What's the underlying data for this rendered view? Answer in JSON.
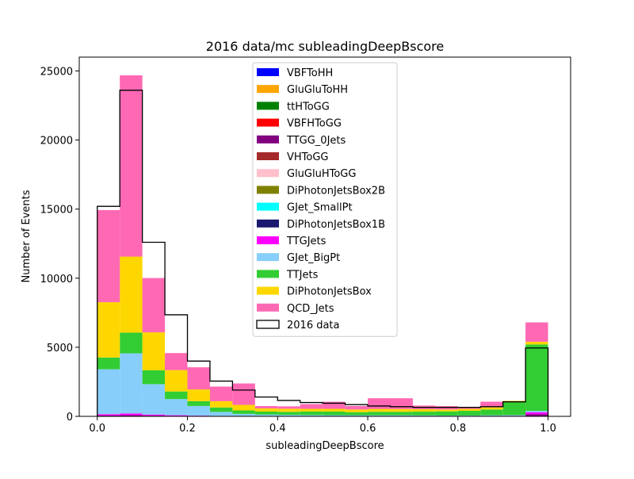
{
  "chart_data": {
    "type": "bar",
    "stacked": true,
    "title": "2016 data/mc subleadingDeepBscore",
    "xlabel": "subleadingDeepBscore",
    "ylabel": "Number of Events",
    "xlim": [
      -0.04,
      1.05
    ],
    "ylim": [
      0,
      26000
    ],
    "xticks": [
      0.0,
      0.2,
      0.4,
      0.6,
      0.8,
      1.0
    ],
    "xtick_labels": [
      "0.0",
      "0.2",
      "0.4",
      "0.6",
      "0.8",
      "1.0"
    ],
    "yticks": [
      0,
      5000,
      10000,
      15000,
      20000,
      25000
    ],
    "ytick_labels": [
      "0",
      "5000",
      "10000",
      "15000",
      "20000",
      "25000"
    ],
    "legend_position": "top-center",
    "bin_edges": [
      0.0,
      0.05,
      0.1,
      0.15,
      0.2,
      0.25,
      0.3,
      0.35,
      0.4,
      0.45,
      0.5,
      0.55,
      0.6,
      0.65,
      0.7,
      0.75,
      0.8,
      0.85,
      0.9,
      0.95,
      1.0
    ],
    "series": [
      {
        "name": "VBFToHH",
        "color": "#0000ff",
        "values": [
          0,
          0,
          0,
          0,
          0,
          0,
          0,
          0,
          0,
          0,
          0,
          0,
          0,
          0,
          0,
          0,
          0,
          0,
          0,
          0
        ]
      },
      {
        "name": "GluGluToHH",
        "color": "#ffa500",
        "values": [
          0,
          0,
          0,
          0,
          0,
          0,
          0,
          0,
          0,
          0,
          0,
          0,
          0,
          0,
          0,
          0,
          0,
          0,
          0,
          0
        ]
      },
      {
        "name": "ttHToGG",
        "color": "#008000",
        "values": [
          0,
          0,
          0,
          0,
          0,
          0,
          0,
          0,
          0,
          0,
          0,
          0,
          0,
          0,
          0,
          0,
          0,
          0,
          0,
          0
        ]
      },
      {
        "name": "VBFHToGG",
        "color": "#ff0000",
        "values": [
          0,
          0,
          0,
          0,
          0,
          0,
          0,
          0,
          0,
          0,
          0,
          0,
          0,
          0,
          0,
          0,
          0,
          0,
          0,
          0
        ]
      },
      {
        "name": "TTGG_0Jets",
        "color": "#800080",
        "values": [
          60,
          80,
          50,
          30,
          20,
          15,
          10,
          10,
          10,
          10,
          10,
          10,
          10,
          10,
          10,
          10,
          10,
          15,
          20,
          150
        ]
      },
      {
        "name": "VHToGG",
        "color": "#a52a2a",
        "values": [
          0,
          0,
          0,
          0,
          0,
          0,
          0,
          0,
          0,
          0,
          0,
          0,
          0,
          0,
          0,
          0,
          0,
          0,
          0,
          0
        ]
      },
      {
        "name": "GluGluHToGG",
        "color": "#ffc0cb",
        "values": [
          0,
          0,
          0,
          0,
          0,
          0,
          0,
          0,
          0,
          0,
          0,
          0,
          0,
          0,
          0,
          0,
          0,
          0,
          0,
          0
        ]
      },
      {
        "name": "DiPhotonJetsBox2B",
        "color": "#808000",
        "values": [
          0,
          0,
          0,
          0,
          0,
          0,
          0,
          0,
          0,
          0,
          0,
          0,
          0,
          0,
          0,
          0,
          0,
          0,
          0,
          0
        ]
      },
      {
        "name": "GJet_SmallPt",
        "color": "#00ffff",
        "values": [
          0,
          0,
          0,
          0,
          0,
          0,
          0,
          0,
          0,
          0,
          0,
          0,
          0,
          0,
          0,
          0,
          0,
          0,
          0,
          0
        ]
      },
      {
        "name": "DiPhotonJetsBox1B",
        "color": "#191970",
        "values": [
          0,
          0,
          0,
          0,
          0,
          0,
          0,
          0,
          0,
          0,
          0,
          0,
          0,
          0,
          0,
          0,
          0,
          0,
          0,
          0
        ]
      },
      {
        "name": "TTGJets",
        "color": "#ff00ff",
        "values": [
          100,
          130,
          80,
          50,
          30,
          20,
          20,
          15,
          15,
          15,
          15,
          10,
          10,
          10,
          10,
          10,
          10,
          15,
          20,
          150
        ]
      },
      {
        "name": "GJet_BigPt",
        "color": "#87cefa",
        "values": [
          3250,
          4350,
          2200,
          1170,
          700,
          290,
          150,
          100,
          80,
          70,
          60,
          60,
          60,
          60,
          50,
          40,
          40,
          50,
          50,
          100
        ]
      },
      {
        "name": "TTJets",
        "color": "#32cd32",
        "values": [
          850,
          1500,
          1000,
          550,
          350,
          320,
          250,
          220,
          220,
          250,
          260,
          220,
          250,
          250,
          270,
          300,
          340,
          420,
          930,
          4800
        ]
      },
      {
        "name": "DiPhotonJetsBox",
        "color": "#ffd700",
        "values": [
          4000,
          5500,
          2750,
          1550,
          850,
          450,
          400,
          230,
          230,
          200,
          200,
          200,
          210,
          200,
          180,
          140,
          140,
          150,
          100,
          200
        ]
      },
      {
        "name": "QCD_Jets",
        "color": "#ff69b4",
        "values": [
          6670,
          13120,
          3930,
          1230,
          1600,
          1060,
          1550,
          170,
          170,
          340,
          510,
          250,
          770,
          780,
          260,
          240,
          110,
          410,
          0,
          1400
        ]
      }
    ],
    "data_series": {
      "name": "2016 data",
      "color": "#000000",
      "values": [
        15200,
        23600,
        12600,
        7350,
        4000,
        2550,
        1900,
        1400,
        1150,
        1000,
        950,
        850,
        750,
        700,
        650,
        650,
        650,
        700,
        1050,
        4950
      ]
    }
  }
}
